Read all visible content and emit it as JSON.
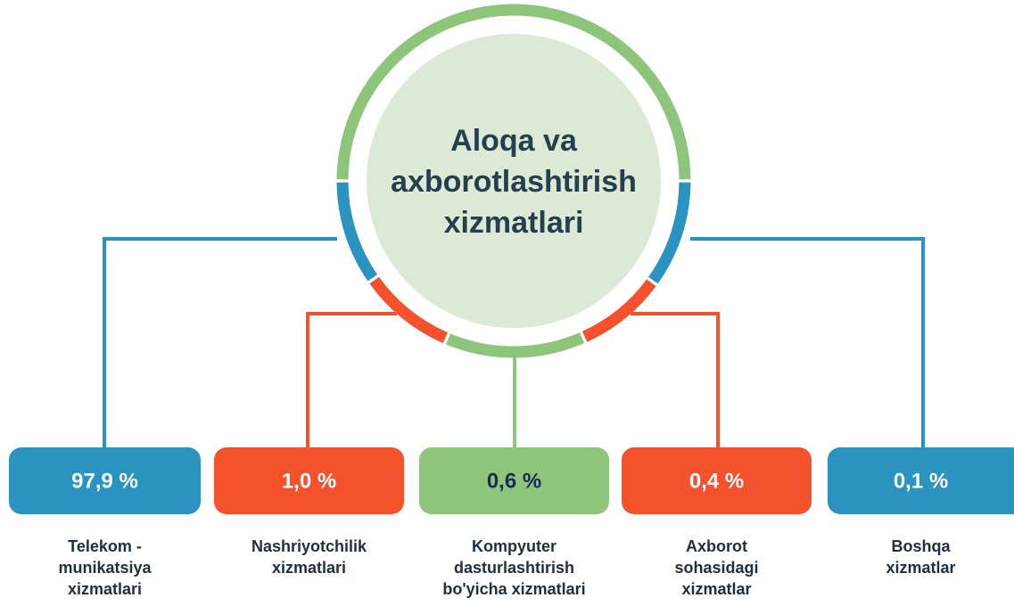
{
  "center": {
    "title": [
      "Aloqa va",
      "axborotlashtirish",
      "xizmatlari"
    ]
  },
  "items": [
    {
      "value": "97,9 %",
      "label": [
        "Telekom -",
        "munikatsiya",
        "xizmatlari"
      ]
    },
    {
      "value": "1,0 %",
      "label": [
        "Nashriyotchilik",
        "xizmatlari"
      ]
    },
    {
      "value": "0,6 %",
      "label": [
        "Kompyuter",
        "dasturlashtirish",
        "bo'yicha xizmatlari"
      ]
    },
    {
      "value": "0,4 %",
      "label": [
        "Axborot",
        "sohasidagi",
        "xizmatlar"
      ]
    },
    {
      "value": "0,1 %",
      "label": [
        "Boshqa",
        "xizmatlar"
      ]
    }
  ]
}
